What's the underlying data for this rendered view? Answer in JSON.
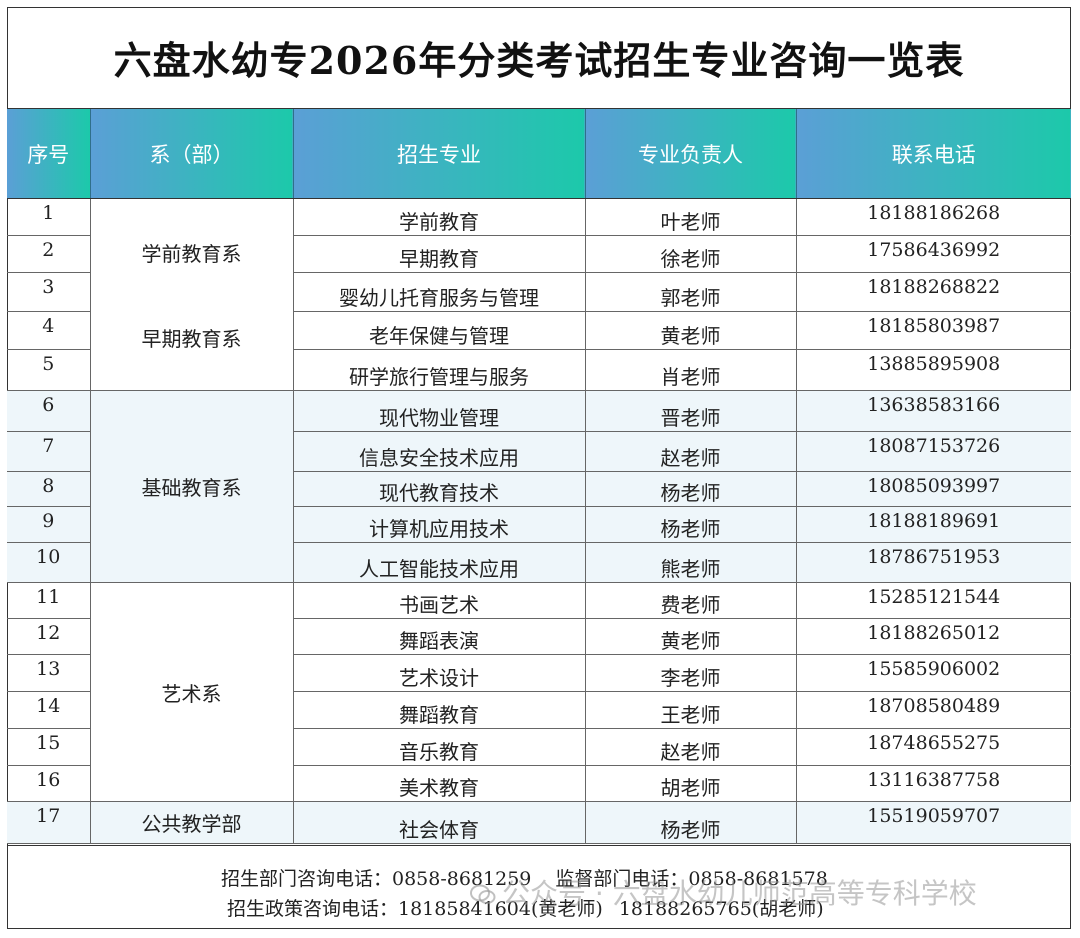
{
  "title": "六盘水幼专2026年分类考试招生专业咨询一览表",
  "headers": [
    "序号",
    "系（部）",
    "招生专业",
    "专业负责人",
    "联系电话"
  ],
  "rows": [
    {
      "no": "1",
      "major": "学前教育",
      "person": "叶老师",
      "phone": "18188186268"
    },
    {
      "no": "2",
      "major": "早期教育",
      "person": "徐老师",
      "phone": "17586436992"
    },
    {
      "no": "3",
      "major": "婴幼儿托育服务与管理",
      "person": "郭老师",
      "phone": "18188268822"
    },
    {
      "no": "4",
      "major": "老年保健与管理",
      "person": "黄老师",
      "phone": "18185803987"
    },
    {
      "no": "5",
      "major": "研学旅行管理与服务",
      "person": "肖老师",
      "phone": "13885895908"
    },
    {
      "no": "6",
      "major": "现代物业管理",
      "person": "晋老师",
      "phone": "13638583166"
    },
    {
      "no": "7",
      "major": "信息安全技术应用",
      "person": "赵老师",
      "phone": "18087153726"
    },
    {
      "no": "8",
      "major": "现代教育技术",
      "person": "杨老师",
      "phone": "18085093997"
    },
    {
      "no": "9",
      "major": "计算机应用技术",
      "person": "杨老师",
      "phone": "18188189691"
    },
    {
      "no": "10",
      "major": "人工智能技术应用",
      "person": "熊老师",
      "phone": "18786751953"
    },
    {
      "no": "11",
      "major": "书画艺术",
      "person": "费老师",
      "phone": "15285121544"
    },
    {
      "no": "12",
      "major": "舞蹈表演",
      "person": "黄老师",
      "phone": "18188265012"
    },
    {
      "no": "13",
      "major": "艺术设计",
      "person": "李老师",
      "phone": "15585906002"
    },
    {
      "no": "14",
      "major": "舞蹈教育",
      "person": "王老师",
      "phone": "18708580489"
    },
    {
      "no": "15",
      "major": "音乐教育",
      "person": "赵老师",
      "phone": "18748655275"
    },
    {
      "no": "16",
      "major": "美术教育",
      "person": "胡老师",
      "phone": "13116387758"
    },
    {
      "no": "17",
      "major": "社会体育",
      "person": "杨老师",
      "phone": "15519059707"
    }
  ],
  "departments": {
    "preschool": "学前教育系",
    "early": "早期教育系",
    "basic": "基础教育系",
    "art": "艺术系",
    "public": "公共教学部"
  },
  "footer": {
    "admission_phone": "招生部门咨询电话：0858-8681259",
    "supervision_phone": "监督部门电话：0858-8681578",
    "policy_phone": "招生政策咨询电话：18185841604(黄老师)",
    "policy_phone_2": "18188265765(胡老师)"
  },
  "watermark": "公众号 · 六盘水幼儿师范高等专科学校"
}
